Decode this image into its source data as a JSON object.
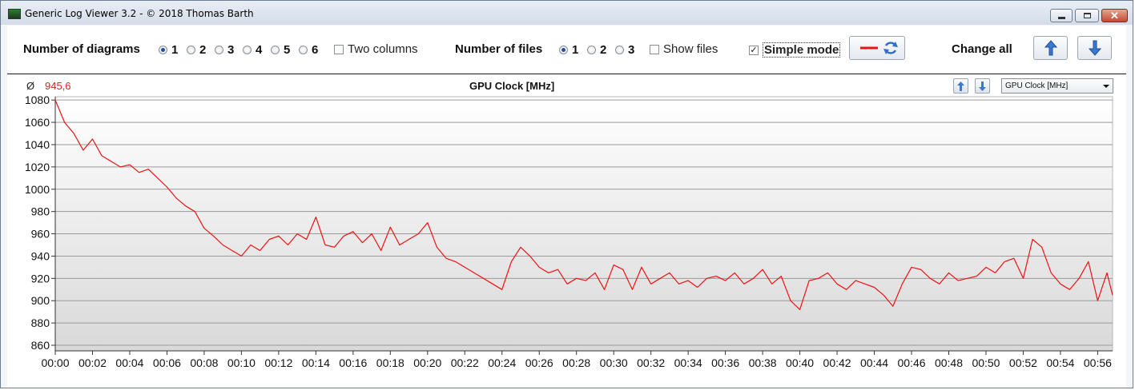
{
  "window": {
    "title": "Generic Log Viewer 3.2 - © 2018 Thomas Barth"
  },
  "toolbar": {
    "diagrams_label": "Number of diagrams",
    "diagram_options": [
      "1",
      "2",
      "3",
      "4",
      "5",
      "6"
    ],
    "diagram_selected": "1",
    "two_columns_label": "Two columns",
    "files_label": "Number of files",
    "file_options": [
      "1",
      "2",
      "3"
    ],
    "file_selected": "1",
    "show_files_label": "Show files",
    "simple_mode_label": "Simple mode",
    "simple_mode_checked": true,
    "change_all_label": "Change all"
  },
  "chart": {
    "average_symbol": "Ø",
    "average_value": "945,6",
    "title": "GPU Clock [MHz]",
    "selector_value": "GPU Clock [MHz]"
  },
  "colors": {
    "series": "#ee1111",
    "average": "#e02020",
    "accent_blue": "#3b78d1"
  },
  "icons": {
    "app": "app-icon",
    "minimize": "minimize-icon",
    "maximize": "maximize-icon",
    "close": "close-icon",
    "line_color": "red-line-icon",
    "refresh": "refresh-icon",
    "up": "arrow-up-icon",
    "down": "arrow-down-icon"
  },
  "chart_data": {
    "type": "line",
    "title": "GPU Clock [MHz]",
    "xlabel": "",
    "ylabel": "",
    "ylim": [
      855,
      1083
    ],
    "yticks": [
      860,
      880,
      900,
      920,
      940,
      960,
      980,
      1000,
      1020,
      1040,
      1060,
      1080
    ],
    "xticks": [
      "00:00",
      "00:02",
      "00:04",
      "00:06",
      "00:08",
      "00:10",
      "00:12",
      "00:14",
      "00:16",
      "00:18",
      "00:20",
      "00:22",
      "00:24",
      "00:26",
      "00:28",
      "00:30",
      "00:32",
      "00:34",
      "00:36",
      "00:38",
      "00:40",
      "00:42",
      "00:44",
      "00:46",
      "00:48",
      "00:50",
      "00:52",
      "00:54",
      "00:56"
    ],
    "grid": true,
    "series": [
      {
        "x_unit": "minutes",
        "x": [
          0,
          0.5,
          1,
          1.5,
          2,
          2.5,
          3,
          3.5,
          4,
          4.5,
          5,
          5.5,
          6,
          6.5,
          7,
          7.5,
          8,
          8.5,
          9,
          9.5,
          10,
          10.5,
          11,
          11.5,
          12,
          12.5,
          13,
          13.5,
          14,
          14.5,
          15,
          15.5,
          16,
          16.5,
          17,
          17.5,
          18,
          18.5,
          19,
          19.5,
          20,
          20.5,
          21,
          21.5,
          22,
          22.5,
          23,
          23.5,
          24,
          24.5,
          25,
          25.5,
          26,
          26.5,
          27,
          27.5,
          28,
          28.5,
          29,
          29.5,
          30,
          30.5,
          31,
          31.5,
          32,
          32.5,
          33,
          33.5,
          34,
          34.5,
          35,
          35.5,
          36,
          36.5,
          37,
          37.5,
          38,
          38.5,
          39,
          39.5,
          40,
          40.5,
          41,
          41.5,
          42,
          42.5,
          43,
          43.5,
          44,
          44.5,
          45,
          45.5,
          46,
          46.5,
          47,
          47.5,
          48,
          48.5,
          49,
          49.5,
          50,
          50.5,
          51,
          51.5,
          52,
          52.5,
          53,
          53.5,
          54,
          54.5,
          55,
          55.5,
          56,
          56.5,
          56.8
        ],
        "y": [
          1080,
          1060,
          1050,
          1035,
          1045,
          1030,
          1025,
          1020,
          1022,
          1015,
          1018,
          1010,
          1002,
          992,
          985,
          980,
          965,
          958,
          950,
          945,
          940,
          950,
          945,
          955,
          958,
          950,
          960,
          955,
          975,
          950,
          948,
          958,
          962,
          952,
          960,
          945,
          966,
          950,
          955,
          960,
          970,
          948,
          938,
          935,
          930,
          925,
          920,
          915,
          910,
          935,
          948,
          940,
          930,
          925,
          928,
          915,
          920,
          918,
          925,
          910,
          932,
          928,
          910,
          930,
          915,
          920,
          925,
          915,
          918,
          912,
          920,
          922,
          918,
          925,
          915,
          920,
          928,
          915,
          922,
          900,
          892,
          918,
          920,
          925,
          915,
          910,
          918,
          915,
          912,
          905,
          895,
          915,
          930,
          928,
          920,
          915,
          925,
          918,
          920,
          922,
          930,
          925,
          935,
          938,
          920,
          955,
          948,
          925,
          915,
          910,
          920,
          935,
          900,
          925,
          905
        ]
      }
    ]
  }
}
